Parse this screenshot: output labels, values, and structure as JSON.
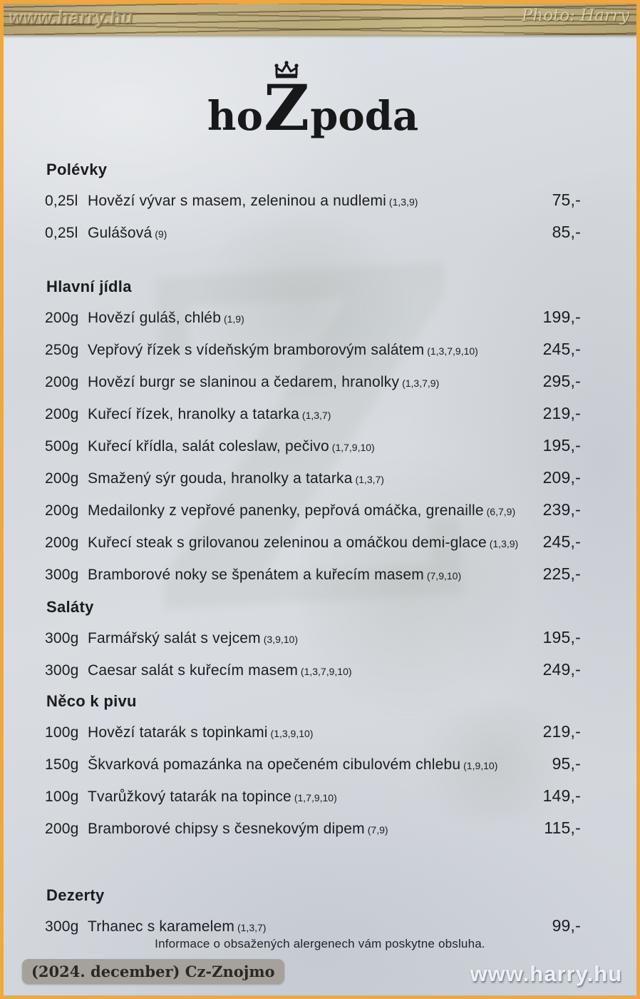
{
  "photo": {
    "top_watermark": "www.harry.hu",
    "photo_credit": "Photo: Harry",
    "bottom_watermark": "www.harry.hu",
    "caption_badge": "(2024. december) Cz-Znojmo"
  },
  "colors": {
    "border_orange": "#EFA73F",
    "paper": "#D6DAE0",
    "ink": "#1B1C1E",
    "wood": "#BFA87A",
    "badge_bg": "#A5A29C"
  },
  "menu": {
    "logo": {
      "pre": "ho",
      "mid": "Z",
      "post": "poda"
    },
    "footer_note": "Informace o obsažených alergenech vám poskytne obsluha.",
    "sections": [
      {
        "heading": "Polévky",
        "items": [
          {
            "qty": "0,25l",
            "name": "Hovězí vývar s masem, zeleninou a nudlemi",
            "allergens": "(1,3,9)",
            "price": "75,-"
          },
          {
            "qty": "0,25l",
            "name": "Gulášová",
            "allergens": "(9)",
            "price": "85,-"
          }
        ]
      },
      {
        "heading": "Hlavní jídla",
        "items": [
          {
            "qty": "200g",
            "name": "Hovězí guláš, chléb",
            "allergens": "(1,9)",
            "price": "199,-"
          },
          {
            "qty": "250g",
            "name": "Vepřový řízek s vídeňským bramborovým salátem",
            "allergens": "(1,3,7,9,10)",
            "price": "245,-"
          },
          {
            "qty": "200g",
            "name": "Hovězí burgr se slaninou a čedarem, hranolky",
            "allergens": "(1,3,7,9)",
            "price": "295,-"
          },
          {
            "qty": "200g",
            "name": "Kuřecí řízek, hranolky a tatarka",
            "allergens": "(1,3,7)",
            "price": "219,-"
          },
          {
            "qty": "500g",
            "name": "Kuřecí křídla, salát coleslaw, pečivo",
            "allergens": "(1,7,9,10)",
            "price": "195,-"
          },
          {
            "qty": "200g",
            "name": "Smažený sýr gouda, hranolky a tatarka",
            "allergens": "(1,3,7)",
            "price": "209,-"
          },
          {
            "qty": "200g",
            "name": "Medailonky z vepřové panenky, pepřová omáčka, grenaille",
            "allergens": "(6,7,9)",
            "price": "239,-"
          },
          {
            "qty": "200g",
            "name": "Kuřecí steak s grilovanou zeleninou a omáčkou demi-glace",
            "allergens": "(1,3,9)",
            "price": "245,-"
          },
          {
            "qty": "300g",
            "name": "Bramborové noky se špenátem a kuřecím masem",
            "allergens": "(7,9,10)",
            "price": "225,-"
          }
        ]
      },
      {
        "heading": "Saláty",
        "items": [
          {
            "qty": "300g",
            "name": "Farmářský salát s vejcem",
            "allergens": "(3,9,10)",
            "price": "195,-"
          },
          {
            "qty": "300g",
            "name": "Caesar salát s kuřecím masem",
            "allergens": "(1,3,7,9,10)",
            "price": "249,-"
          }
        ]
      },
      {
        "heading": "Něco k pivu",
        "items": [
          {
            "qty": "100g",
            "name": "Hovězí tatarák s topinkami",
            "allergens": "(1,3,9,10)",
            "price": "219,-"
          },
          {
            "qty": "150g",
            "name": "Škvarková pomazánka na opečeném cibulovém chlebu",
            "allergens": "(1,9,10)",
            "price": "95,-"
          },
          {
            "qty": "100g",
            "name": "Tvarůžkový tatarák na topince",
            "allergens": "(1,7,9,10)",
            "price": "149,-"
          },
          {
            "qty": "200g",
            "name": "Bramborové chipsy s česnekovým dipem",
            "allergens": "(7,9)",
            "price": "115,-"
          }
        ]
      },
      {
        "heading": "Dezerty",
        "items": [
          {
            "qty": "300g",
            "name": "Trhanec s karamelem",
            "allergens": "(1,3,7)",
            "price": "99,-"
          }
        ]
      }
    ]
  }
}
